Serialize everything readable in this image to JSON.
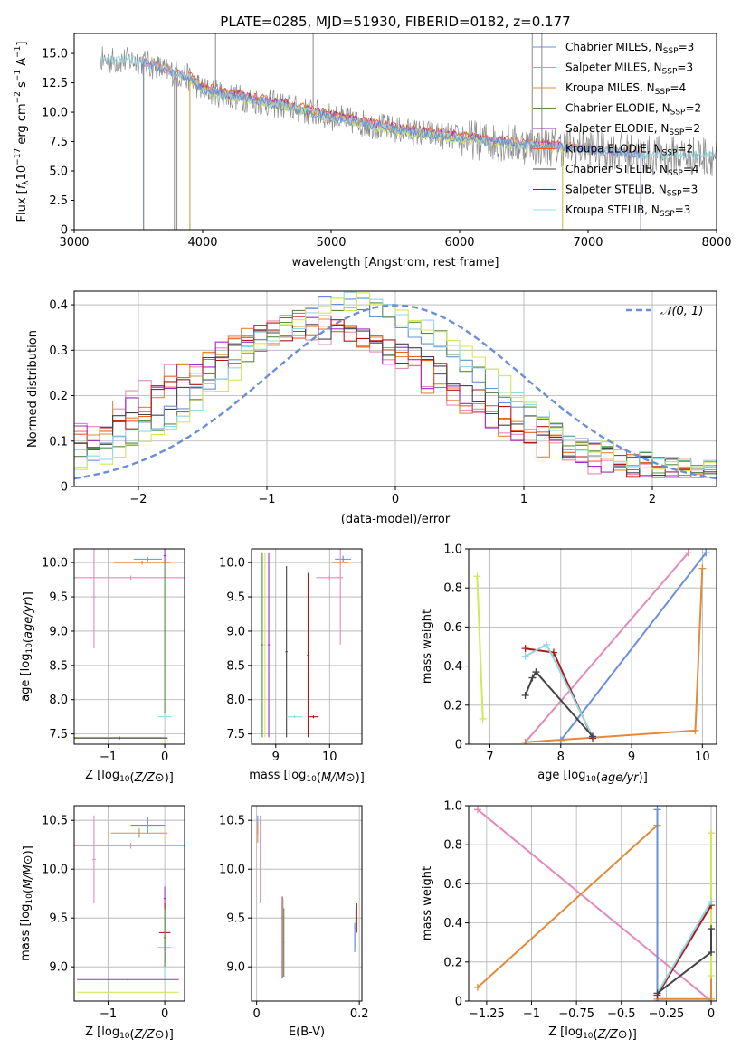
{
  "figure_title": "PLATE=0285, MJD=51930, FIBERID=0182, z=0.177",
  "colors": {
    "chabrier_miles": "#6a8fd8",
    "salpeter_miles": "#e58ab8",
    "kroupa_miles": "#e08a3a",
    "chabrier_elodie": "#5c8a4a",
    "salpeter_elodie": "#9b2fc0",
    "kroupa_elodie": "#e8622a",
    "chabrier_stelib": "#444444",
    "salpeter_stelib": "#b01818",
    "kroupa_stelib": "#8fd8e6",
    "lime": "#d4e65a",
    "data_grey": "#8a8a8a",
    "normal": "#6a8fd8"
  },
  "chart_data": [
    {
      "id": "spectrum",
      "type": "line",
      "xlabel": "wavelength [Angstrom, rest frame]",
      "ylabel": "Flux [f_λ 10^-17 erg cm^-2 s^-1 A^-1]",
      "xlim": [
        3000,
        8000
      ],
      "ylim": [
        0,
        16.7
      ],
      "xticks": [
        3000,
        4000,
        5000,
        6000,
        7000,
        8000
      ],
      "yticks": [
        0.0,
        2.5,
        5.0,
        7.5,
        10.0,
        12.5,
        15.0
      ],
      "legend_position": "top-right",
      "legend": [
        {
          "label": "Chabrier MILES, N",
          "sub": "SSP",
          "suffix": "=3",
          "color_key": "chabrier_miles"
        },
        {
          "label": "Salpeter MILES, N",
          "sub": "SSP",
          "suffix": "=3",
          "color_key": "salpeter_miles"
        },
        {
          "label": "Kroupa MILES, N",
          "sub": "SSP",
          "suffix": "=4",
          "color_key": "kroupa_miles"
        },
        {
          "label": "Chabrier ELODIE, N",
          "sub": "SSP",
          "suffix": "=2",
          "color_key": "chabrier_elodie"
        },
        {
          "label": "Salpeter ELODIE, N",
          "sub": "SSP",
          "suffix": "=2",
          "color_key": "salpeter_elodie"
        },
        {
          "label": "Kroupa ELODIE, N",
          "sub": "SSP",
          "suffix": "=2",
          "color_key": "kroupa_elodie"
        },
        {
          "label": "Chabrier STELIB, N",
          "sub": "SSP",
          "suffix": "=4",
          "color_key": "chabrier_stelib"
        },
        {
          "label": "Salpeter STELIB, N",
          "sub": "SSP",
          "suffix": "=3",
          "color_key": "salpeter_stelib"
        },
        {
          "label": "Kroupa STELIB, N",
          "sub": "SSP",
          "suffix": "=3",
          "color_key": "kroupa_stelib"
        }
      ],
      "continuum": {
        "x": [
          3500,
          3700,
          3900,
          4000,
          4300,
          4600,
          5000,
          5500,
          6000,
          6500,
          7000,
          7500,
          8000
        ],
        "y": [
          14.4,
          13.6,
          12.9,
          11.9,
          11.2,
          10.6,
          9.6,
          8.5,
          7.8,
          7.2,
          6.9,
          6.3,
          6.3
        ]
      },
      "model_ranges": {
        "MILES": [
          3540,
          7410
        ],
        "ELODIE": [
          3900,
          6800
        ],
        "STELIB": [
          3200,
          9300
        ]
      },
      "data_spikes": [
        {
          "x": 3780,
          "y": 0
        },
        {
          "x": 3800,
          "y": 0
        },
        {
          "x": 4100,
          "y": 16.7
        },
        {
          "x": 4860,
          "y": 16.7
        },
        {
          "x": 6565,
          "y": 16.7
        },
        {
          "x": 6640,
          "y": 16.7
        }
      ]
    },
    {
      "id": "residuals",
      "type": "histogram",
      "xlabel": "(data-model)/error",
      "ylabel": "Normed distribution",
      "xlim": [
        -2.5,
        2.5
      ],
      "ylim": [
        0,
        0.43
      ],
      "xticks": [
        -2,
        -1,
        0,
        1,
        2
      ],
      "yticks": [
        0.0,
        0.1,
        0.2,
        0.3,
        0.4
      ],
      "bin_width": 0.1,
      "legend_position": "top-right",
      "normal_label": "𝒩(0, 1)",
      "group_a": {
        "series": [
          "salpeter_miles",
          "kroupa_miles",
          "salpeter_elodie",
          "kroupa_elodie",
          "salpeter_stelib",
          "chabrier_stelib"
        ],
        "center": -0.7,
        "sigma": 1.05,
        "peak": 0.32
      },
      "group_b": {
        "series": [
          "chabrier_miles",
          "chabrier_elodie",
          "kroupa_stelib",
          "lime"
        ],
        "center": -0.3,
        "sigma": 0.95,
        "peak": 0.38
      }
    },
    {
      "id": "age_vs_z",
      "type": "scatter",
      "xlabel": "Z [log10(Z/Z⊙)]",
      "ylabel": "age  [log10(age/yr)]",
      "xlim": [
        -1.6,
        0.35
      ],
      "ylim": [
        7.35,
        10.2
      ],
      "xticks": [
        -1,
        0
      ],
      "yticks": [
        7.5,
        8.0,
        8.5,
        9.0,
        9.5,
        10.0
      ],
      "points": [
        {
          "series": "chabrier_miles",
          "x": -0.3,
          "y": 10.05,
          "xerr": 0.25,
          "yerr": 0.03
        },
        {
          "series": "kroupa_miles",
          "x": -0.4,
          "y": 10.0,
          "xerr": 0.5,
          "yerr": 0.03
        },
        {
          "series": "salpeter_miles",
          "x": -0.6,
          "y": 9.78,
          "xerr": 1.0,
          "yerr": 0.03
        },
        {
          "series": "salpeter_miles",
          "x": -1.25,
          "y": 9.5,
          "xerr": 0.03,
          "yerr": 0.75
        },
        {
          "series": "salpeter_elodie",
          "x": 0.0,
          "y": 10.1,
          "xerr": 0.02,
          "yerr": 0.1
        },
        {
          "series": "kroupa_stelib",
          "x": 0.0,
          "y": 7.75,
          "xerr": 0.12,
          "yerr": 0.03
        },
        {
          "series": "chabrier_elodie",
          "x": 0.0,
          "y": 8.9,
          "xerr": 0.02,
          "yerr": 1.1
        },
        {
          "series": "lime",
          "x": -0.8,
          "y": 7.45,
          "xerr": 0.85,
          "yerr": 0.02
        },
        {
          "series": "chabrier_stelib",
          "x": -0.8,
          "y": 7.44,
          "xerr": 0.85,
          "yerr": 0.02
        }
      ]
    },
    {
      "id": "age_vs_mass",
      "type": "scatter",
      "xlabel": "mass [log10(M/M⊙)]",
      "ylabel": "",
      "xlim": [
        8.55,
        10.6
      ],
      "ylim": [
        7.35,
        10.2
      ],
      "xticks": [
        9,
        10
      ],
      "yticks": [
        7.5,
        8.0,
        8.5,
        9.0,
        9.5,
        10.0
      ],
      "points": [
        {
          "series": "chabrier_miles",
          "x": 10.25,
          "y": 10.05,
          "xerr": 0.15,
          "yerr": 0.05
        },
        {
          "series": "kroupa_miles",
          "x": 10.2,
          "y": 10.0,
          "xerr": 0.15,
          "yerr": 0.03
        },
        {
          "series": "salpeter_miles",
          "x": 10.0,
          "y": 9.78,
          "xerr": 0.25,
          "yerr": 0.03
        },
        {
          "series": "salpeter_miles",
          "x": 10.2,
          "y": 9.5,
          "xerr": 0.02,
          "yerr": 0.7
        },
        {
          "series": "chabrier_elodie",
          "x": 8.75,
          "y": 8.8,
          "xerr": 0.02,
          "yerr": 1.35
        },
        {
          "series": "lime",
          "x": 8.8,
          "y": 8.8,
          "xerr": 0.02,
          "yerr": 1.35
        },
        {
          "series": "salpeter_elodie",
          "x": 8.87,
          "y": 8.8,
          "xerr": 0.02,
          "yerr": 1.35
        },
        {
          "series": "chabrier_stelib",
          "x": 9.2,
          "y": 8.7,
          "xerr": 0.02,
          "yerr": 1.25
        },
        {
          "series": "kroupa_stelib",
          "x": 9.35,
          "y": 7.75,
          "xerr": 0.15,
          "yerr": 0.02
        },
        {
          "series": "salpeter_stelib",
          "x": 9.6,
          "y": 8.65,
          "xerr": 0.02,
          "yerr": 1.2
        },
        {
          "series": "salpeter_stelib",
          "x": 9.7,
          "y": 7.75,
          "xerr": 0.1,
          "yerr": 0.02
        }
      ]
    },
    {
      "id": "weight_vs_age",
      "type": "line",
      "xlabel": "age  [log10(age/yr)]",
      "ylabel": "mass weight",
      "xlim": [
        6.7,
        10.2
      ],
      "ylim": [
        0,
        1.0
      ],
      "xticks": [
        7,
        8,
        9,
        10
      ],
      "yticks": [
        0.0,
        0.2,
        0.4,
        0.6,
        0.8,
        1.0
      ],
      "series": [
        {
          "name": "chabrier_miles",
          "x": [
            8.0,
            10.05
          ],
          "y": [
            0.02,
            0.98
          ]
        },
        {
          "name": "salpeter_miles",
          "x": [
            7.5,
            9.8
          ],
          "y": [
            0.01,
            0.98
          ]
        },
        {
          "name": "kroupa_miles",
          "x": [
            7.5,
            9.9,
            10.0
          ],
          "y": [
            0.01,
            0.07,
            0.9
          ]
        },
        {
          "name": "lime",
          "x": [
            6.82,
            6.9
          ],
          "y": [
            0.86,
            0.13
          ]
        },
        {
          "name": "salpeter_stelib",
          "x": [
            7.5,
            7.9,
            8.45
          ],
          "y": [
            0.49,
            0.47,
            0.03
          ]
        },
        {
          "name": "kroupa_stelib",
          "x": [
            7.5,
            7.8,
            8.45
          ],
          "y": [
            0.45,
            0.51,
            0.04
          ]
        },
        {
          "name": "chabrier_stelib",
          "x": [
            7.5,
            7.6,
            7.65,
            8.45
          ],
          "y": [
            0.25,
            0.34,
            0.37,
            0.04
          ]
        }
      ]
    },
    {
      "id": "mass_vs_z",
      "type": "scatter",
      "xlabel": "Z [log10(Z/Z⊙)]",
      "ylabel": "mass [log10(M/M⊙)]",
      "xlim": [
        -1.6,
        0.35
      ],
      "ylim": [
        8.65,
        10.65
      ],
      "xticks": [
        -1,
        0
      ],
      "yticks": [
        9.0,
        9.5,
        10.0,
        10.5
      ],
      "points": [
        {
          "series": "chabrier_miles",
          "x": -0.3,
          "y": 10.45,
          "xerr": 0.3,
          "yerr": 0.08
        },
        {
          "series": "kroupa_miles",
          "x": -0.45,
          "y": 10.37,
          "xerr": 0.5,
          "yerr": 0.05
        },
        {
          "series": "salpeter_miles",
          "x": -0.6,
          "y": 10.24,
          "xerr": 1.0,
          "yerr": 0.03
        },
        {
          "series": "salpeter_miles",
          "x": -1.25,
          "y": 10.1,
          "xerr": 0.03,
          "yerr": 0.45
        },
        {
          "series": "salpeter_elodie",
          "x": 0.0,
          "y": 9.7,
          "xerr": 0.02,
          "yerr": 0.12
        },
        {
          "series": "salpeter_stelib",
          "x": 0.0,
          "y": 9.35,
          "xerr": 0.1,
          "yerr": 0.3
        },
        {
          "series": "kroupa_stelib",
          "x": 0.0,
          "y": 9.2,
          "xerr": 0.12,
          "yerr": 0.35
        },
        {
          "series": "salpeter_elodie",
          "x": -0.65,
          "y": 8.87,
          "xerr": 0.9,
          "yerr": 0.02
        },
        {
          "series": "lime",
          "x": -0.65,
          "y": 8.74,
          "xerr": 0.9,
          "yerr": 0.02
        },
        {
          "series": "chabrier_elodie",
          "x": 0.0,
          "y": 9.3,
          "xerr": 0.02,
          "yerr": 0.3
        }
      ]
    },
    {
      "id": "mass_vs_ebv",
      "type": "scatter",
      "xlabel": "E(B-V)",
      "ylabel": "",
      "xlim": [
        -0.01,
        0.205
      ],
      "ylim": [
        8.65,
        10.65
      ],
      "xticks": [
        0.0,
        0.2
      ],
      "yticks": [
        9.0,
        9.5,
        10.0,
        10.5
      ],
      "points": [
        {
          "series": "chabrier_miles",
          "x": 0.002,
          "y": 10.45,
          "xerr": 0.001,
          "yerr": 0.1
        },
        {
          "series": "kroupa_miles",
          "x": 0.002,
          "y": 10.37,
          "xerr": 0.001,
          "yerr": 0.1
        },
        {
          "series": "salpeter_miles",
          "x": 0.007,
          "y": 10.1,
          "xerr": 0.001,
          "yerr": 0.45
        },
        {
          "series": "salpeter_elodie",
          "x": 0.05,
          "y": 9.3,
          "xerr": 0.001,
          "yerr": 0.42
        },
        {
          "series": "lime",
          "x": 0.052,
          "y": 9.3,
          "xerr": 0.001,
          "yerr": 0.4
        },
        {
          "series": "chabrier_elodie",
          "x": 0.053,
          "y": 9.25,
          "xerr": 0.001,
          "yerr": 0.35
        },
        {
          "series": "salpeter_stelib",
          "x": 0.195,
          "y": 9.5,
          "xerr": 0.001,
          "yerr": 0.15
        },
        {
          "series": "kroupa_stelib",
          "x": 0.193,
          "y": 9.4,
          "xerr": 0.001,
          "yerr": 0.2
        },
        {
          "series": "chabrier_miles",
          "x": 0.191,
          "y": 9.3,
          "xerr": 0.001,
          "yerr": 0.15
        }
      ]
    },
    {
      "id": "weight_vs_z",
      "type": "line",
      "xlabel": "Z [log10(Z/Z⊙)]",
      "ylabel": "mass weight",
      "xlim": [
        -1.35,
        0.03
      ],
      "ylim": [
        0,
        1.0
      ],
      "xticks": [
        -1.25,
        -1.0,
        -0.75,
        -0.5,
        -0.25,
        0.0
      ],
      "yticks": [
        0.0,
        0.2,
        0.4,
        0.6,
        0.8,
        1.0
      ],
      "series": [
        {
          "name": "salpeter_miles",
          "x": [
            -1.3,
            0.0
          ],
          "y": [
            0.98,
            0.0
          ]
        },
        {
          "name": "kroupa_miles",
          "x": [
            -1.3,
            -0.3,
            -0.3,
            0.0,
            0.0
          ],
          "y": [
            0.07,
            0.9,
            0.01,
            0.01,
            0.86
          ]
        },
        {
          "name": "chabrier_miles",
          "x": [
            -0.3,
            -0.3
          ],
          "y": [
            0.0,
            0.98
          ]
        },
        {
          "name": "lime",
          "x": [
            0.0,
            0.0
          ],
          "y": [
            0.13,
            0.86
          ]
        },
        {
          "name": "salpeter_stelib",
          "x": [
            -0.3,
            0.0
          ],
          "y": [
            0.03,
            0.49
          ]
        },
        {
          "name": "kroupa_stelib",
          "x": [
            -0.3,
            0.0
          ],
          "y": [
            0.04,
            0.51
          ]
        },
        {
          "name": "chabrier_stelib",
          "x": [
            -0.3,
            0.0,
            0.0
          ],
          "y": [
            0.04,
            0.25,
            0.37
          ]
        }
      ]
    }
  ]
}
